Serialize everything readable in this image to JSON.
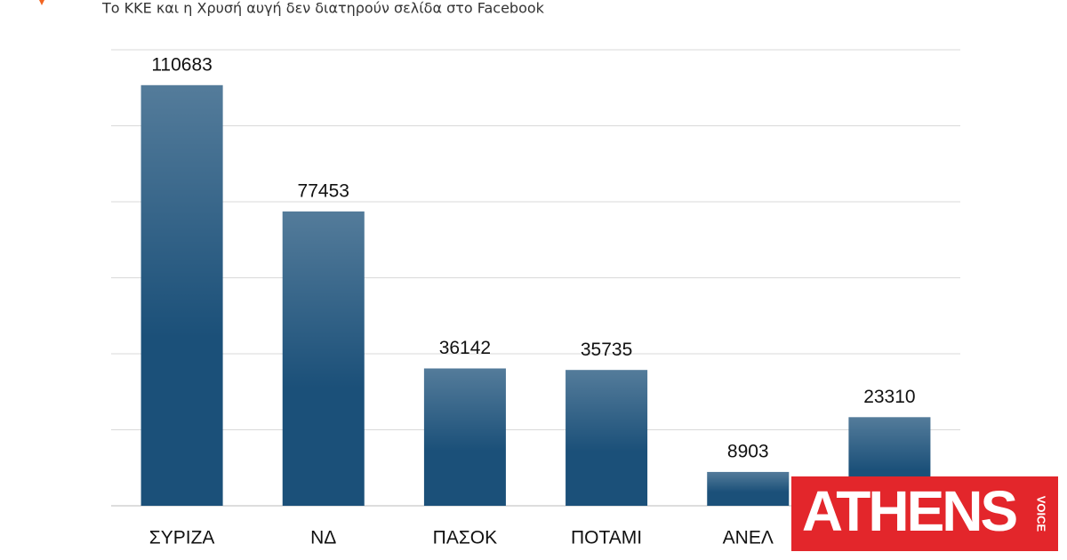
{
  "chart_data": {
    "type": "bar",
    "subtitle": "Το ΚΚΕ και η Χρυσή αυγή δεν διατηρούν σελίδα στο Facebook",
    "categories": [
      "ΣΥΡΙΖΑ",
      "ΝΔ",
      "ΠΑΣΟΚ",
      "ΠΟΤΑΜΙ",
      "ΑΝΕΛ",
      null
    ],
    "values": [
      110683,
      77453,
      36142,
      35735,
      8903,
      23310
    ],
    "color": "#1b5079",
    "ylim": [
      0,
      120000
    ],
    "yticks": [
      0,
      20000,
      40000,
      60000,
      80000,
      100000,
      120000
    ],
    "grid": true
  },
  "logo": {
    "name": "ATHENS",
    "tag": "VOICE"
  }
}
